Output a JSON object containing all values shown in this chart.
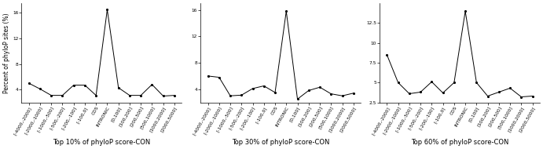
{
  "x_labels": [
    "[-4000,-2000]",
    "[-2000,-1000]",
    "[-1000,-500]",
    "[-500,-200]",
    "[-200,-100]",
    "[-100,0]",
    "CDS",
    "INTRONIC",
    "[0,100]",
    "[100,200]",
    "[200,500]",
    "[500,1000]",
    "[1000,2000]",
    "[2000,5000]"
  ],
  "panel1": {
    "title": "Top 10% of phyloP score-CON",
    "y_values": [
      5.0,
      4.1,
      3.1,
      3.1,
      4.7,
      4.7,
      3.1,
      16.5,
      4.3,
      3.1,
      3.1,
      4.8,
      3.0,
      3.1
    ],
    "ylim": [
      2.0,
      17.5
    ],
    "yticks": [
      4,
      8,
      12,
      16
    ]
  },
  "panel2": {
    "title": "Top 30% of phyloP score-CON",
    "y_values": [
      6.0,
      5.8,
      3.0,
      3.1,
      4.1,
      4.5,
      3.5,
      15.8,
      2.5,
      3.8,
      4.3,
      3.3,
      3.0,
      3.4
    ],
    "ylim": [
      2.0,
      17.0
    ],
    "yticks": [
      4,
      8,
      12,
      16
    ]
  },
  "panel3": {
    "title": "Top 60% of phyloP score-CON",
    "y_values": [
      8.5,
      5.0,
      3.6,
      3.8,
      5.1,
      3.7,
      5.0,
      14.0,
      5.0,
      3.3,
      3.8,
      4.3,
      3.2,
      3.3
    ],
    "ylim": [
      2.5,
      15.0
    ],
    "yticks": [
      2.5,
      5.0,
      7.5,
      10.0,
      12.5
    ]
  },
  "ylabel": "Percent of phyloP sites (%)",
  "line_color": "#000000",
  "marker": ".",
  "marker_size": 2.5,
  "linewidth": 0.7,
  "title_fontsize": 6.0,
  "label_fontsize": 5.5,
  "tick_fontsize": 4.2,
  "bg_color": "#ffffff"
}
